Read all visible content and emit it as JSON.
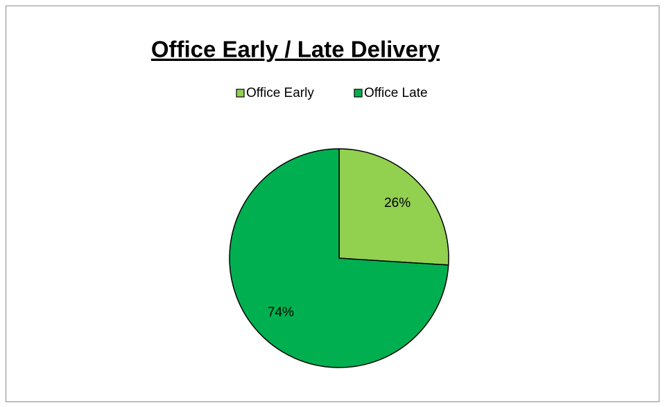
{
  "chart_data": {
    "type": "pie",
    "title": "Office Early / Late Delivery",
    "categories": [
      "Office Early",
      "Office Late"
    ],
    "values": [
      26,
      74
    ],
    "value_labels": [
      "26%",
      "74%"
    ],
    "colors": [
      "#92d050",
      "#00b050"
    ],
    "legend": "top"
  }
}
